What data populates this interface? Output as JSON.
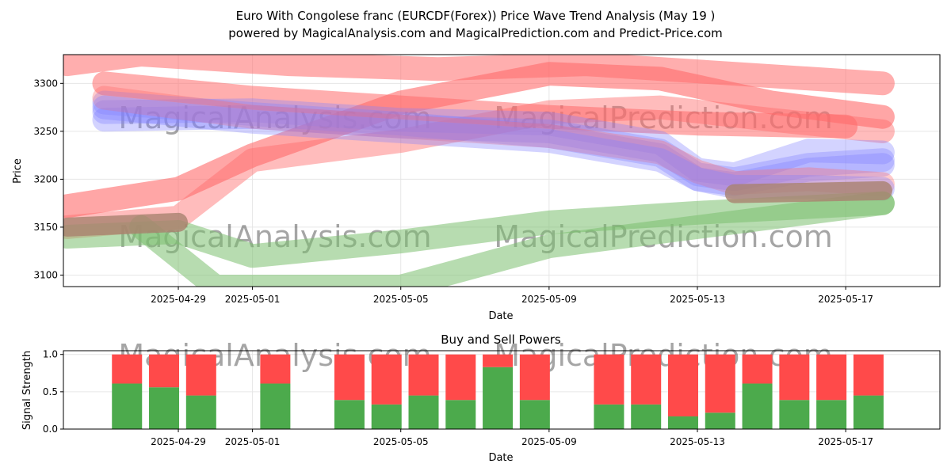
{
  "page": {
    "title_line1": "Euro With Congolese franc (EURCDF(Forex)) Price Wave Trend Analysis (May 19 )",
    "title_line2": "powered by MagicalAnalysis.com and MagicalPrediction.com and Predict-Price.com",
    "watermarks": [
      "MagicalAnalysis.com",
      "MagicalPrediction.com"
    ]
  },
  "colors": {
    "red": "#ff6b6b",
    "blue": "#8080ff",
    "green": "#7bbf6f",
    "brown": "#a9826f",
    "buy": "#4caa4c",
    "sell": "#ff4a4a",
    "grid": "#e6e6e6"
  },
  "chart_data": [
    {
      "type": "line",
      "xlabel": "Date",
      "ylabel": "Price",
      "x_ticks": [
        "2025-04-29",
        "2025-05-01",
        "2025-05-05",
        "2025-05-09",
        "2025-05-13",
        "2025-05-17"
      ],
      "y_ticks": [
        3100,
        3150,
        3200,
        3250,
        3300
      ],
      "xlim": [
        "2025-04-26",
        "2025-05-19"
      ],
      "ylim": [
        3088,
        3330
      ],
      "grid": true,
      "series": [
        {
          "color": "red",
          "alpha": 0.55,
          "points": [
            [
              "2025-04-26",
              3320
            ],
            [
              "2025-04-28",
              3330
            ],
            [
              "2025-05-02",
              3320
            ],
            [
              "2025-05-06",
              3315
            ],
            [
              "2025-05-10",
              3320
            ],
            [
              "2025-05-14",
              3310
            ],
            [
              "2025-05-18",
              3300
            ]
          ]
        },
        {
          "color": "red",
          "alpha": 0.55,
          "points": [
            [
              "2025-04-27",
              3300
            ],
            [
              "2025-05-01",
              3285
            ],
            [
              "2025-05-05",
              3275
            ],
            [
              "2025-05-09",
              3265
            ],
            [
              "2025-05-13",
              3258
            ],
            [
              "2025-05-17",
              3255
            ]
          ]
        },
        {
          "color": "red",
          "alpha": 0.6,
          "points": [
            [
              "2025-04-26",
              3172
            ],
            [
              "2025-04-29",
              3190
            ],
            [
              "2025-05-01",
              3225
            ],
            [
              "2025-05-05",
              3280
            ],
            [
              "2025-05-09",
              3310
            ],
            [
              "2025-05-12",
              3305
            ],
            [
              "2025-05-15",
              3280
            ],
            [
              "2025-05-18",
              3265
            ]
          ]
        },
        {
          "color": "red",
          "alpha": 0.45,
          "points": [
            [
              "2025-04-26",
              3150
            ],
            [
              "2025-04-29",
              3160
            ],
            [
              "2025-05-01",
              3220
            ],
            [
              "2025-05-05",
              3240
            ],
            [
              "2025-05-09",
              3270
            ],
            [
              "2025-05-12",
              3275
            ],
            [
              "2025-05-15",
              3262
            ],
            [
              "2025-05-18",
              3250
            ]
          ]
        },
        {
          "color": "blue",
          "alpha": 0.35,
          "points": [
            [
              "2025-04-27",
              3270
            ],
            [
              "2025-05-01",
              3272
            ],
            [
              "2025-05-05",
              3262
            ],
            [
              "2025-05-09",
              3258
            ],
            [
              "2025-05-12",
              3238
            ],
            [
              "2025-05-13",
              3210
            ],
            [
              "2025-05-14",
              3205
            ],
            [
              "2025-05-16",
              3230
            ],
            [
              "2025-05-18",
              3228
            ]
          ]
        },
        {
          "color": "blue",
          "alpha": 0.35,
          "points": [
            [
              "2025-04-27",
              3262
            ],
            [
              "2025-05-01",
              3265
            ],
            [
              "2025-05-05",
              3255
            ],
            [
              "2025-05-09",
              3250
            ],
            [
              "2025-05-12",
              3230
            ],
            [
              "2025-05-13",
              3205
            ],
            [
              "2025-05-14",
              3200
            ],
            [
              "2025-05-16",
              3215
            ],
            [
              "2025-05-18",
              3220
            ]
          ]
        },
        {
          "color": "blue",
          "alpha": 0.35,
          "points": [
            [
              "2025-04-27",
              3280
            ],
            [
              "2025-05-01",
              3268
            ],
            [
              "2025-05-05",
              3258
            ],
            [
              "2025-05-09",
              3245
            ],
            [
              "2025-05-12",
              3225
            ],
            [
              "2025-05-13",
              3200
            ],
            [
              "2025-05-14",
              3195
            ],
            [
              "2025-05-16",
              3210
            ],
            [
              "2025-05-18",
              3215
            ]
          ]
        },
        {
          "color": "red",
          "alpha": 0.35,
          "points": [
            [
              "2025-04-27",
              3285
            ],
            [
              "2025-05-01",
              3265
            ],
            [
              "2025-05-05",
              3255
            ],
            [
              "2025-05-09",
              3245
            ],
            [
              "2025-05-12",
              3228
            ],
            [
              "2025-05-13",
              3208
            ],
            [
              "2025-05-14",
              3196
            ],
            [
              "2025-05-16",
              3200
            ],
            [
              "2025-05-18",
              3195
            ]
          ]
        },
        {
          "color": "blue",
          "alpha": 0.35,
          "points": [
            [
              "2025-04-27",
              3275
            ],
            [
              "2025-05-01",
              3260
            ],
            [
              "2025-05-05",
              3250
            ],
            [
              "2025-05-09",
              3240
            ],
            [
              "2025-05-12",
              3220
            ],
            [
              "2025-05-13",
              3200
            ],
            [
              "2025-05-14",
              3192
            ],
            [
              "2025-05-16",
              3192
            ],
            [
              "2025-05-18",
              3190
            ]
          ]
        },
        {
          "color": "green",
          "alpha": 0.55,
          "points": [
            [
              "2025-04-26",
              3140
            ],
            [
              "2025-04-29",
              3145
            ],
            [
              "2025-05-01",
              3120
            ],
            [
              "2025-05-05",
              3135
            ],
            [
              "2025-05-09",
              3155
            ],
            [
              "2025-05-13",
              3165
            ],
            [
              "2025-05-18",
              3175
            ]
          ]
        },
        {
          "color": "green",
          "alpha": 0.55,
          "points": [
            [
              "2025-04-28",
              3150
            ],
            [
              "2025-04-30",
              3088
            ],
            [
              "2025-05-05",
              3088
            ],
            [
              "2025-05-09",
              3130
            ],
            [
              "2025-05-13",
              3150
            ],
            [
              "2025-05-18",
              3175
            ]
          ]
        },
        {
          "color": "brown",
          "alpha": 0.8,
          "points": [
            [
              "2025-04-26",
              3150
            ],
            [
              "2025-04-29",
              3155
            ]
          ]
        },
        {
          "color": "brown",
          "alpha": 0.8,
          "points": [
            [
              "2025-05-14",
              3185
            ],
            [
              "2025-05-18",
              3188
            ]
          ]
        }
      ]
    },
    {
      "type": "bar",
      "title": "Buy and Sell Powers",
      "xlabel": "Date",
      "ylabel": "Signal Strength",
      "x_ticks": [
        "2025-04-29",
        "2025-05-01",
        "2025-05-05",
        "2025-05-09",
        "2025-05-13",
        "2025-05-17"
      ],
      "y_ticks": [
        0.0,
        0.5,
        1.0
      ],
      "ylim": [
        0,
        1.05
      ],
      "categories": [
        "2025-04-28",
        "2025-04-29",
        "2025-04-30",
        "2025-05-02",
        "2025-05-04",
        "2025-05-05",
        "2025-05-06",
        "2025-05-07",
        "2025-05-08",
        "2025-05-09",
        "2025-05-11",
        "2025-05-12",
        "2025-05-13",
        "2025-05-14",
        "2025-05-15",
        "2025-05-16",
        "2025-05-17",
        "2025-05-18"
      ],
      "series": [
        {
          "name": "buy",
          "values": [
            0.61,
            0.56,
            0.45,
            0.61,
            0.39,
            0.33,
            0.45,
            0.39,
            0.83,
            0.39,
            0.33,
            0.33,
            0.17,
            0.22,
            0.61,
            0.39,
            0.39,
            0.45
          ]
        },
        {
          "name": "sell",
          "values": [
            0.39,
            0.44,
            0.55,
            0.39,
            0.61,
            0.67,
            0.55,
            0.61,
            0.17,
            0.61,
            0.67,
            0.67,
            0.83,
            0.78,
            0.39,
            0.61,
            0.61,
            0.55
          ]
        }
      ]
    }
  ]
}
